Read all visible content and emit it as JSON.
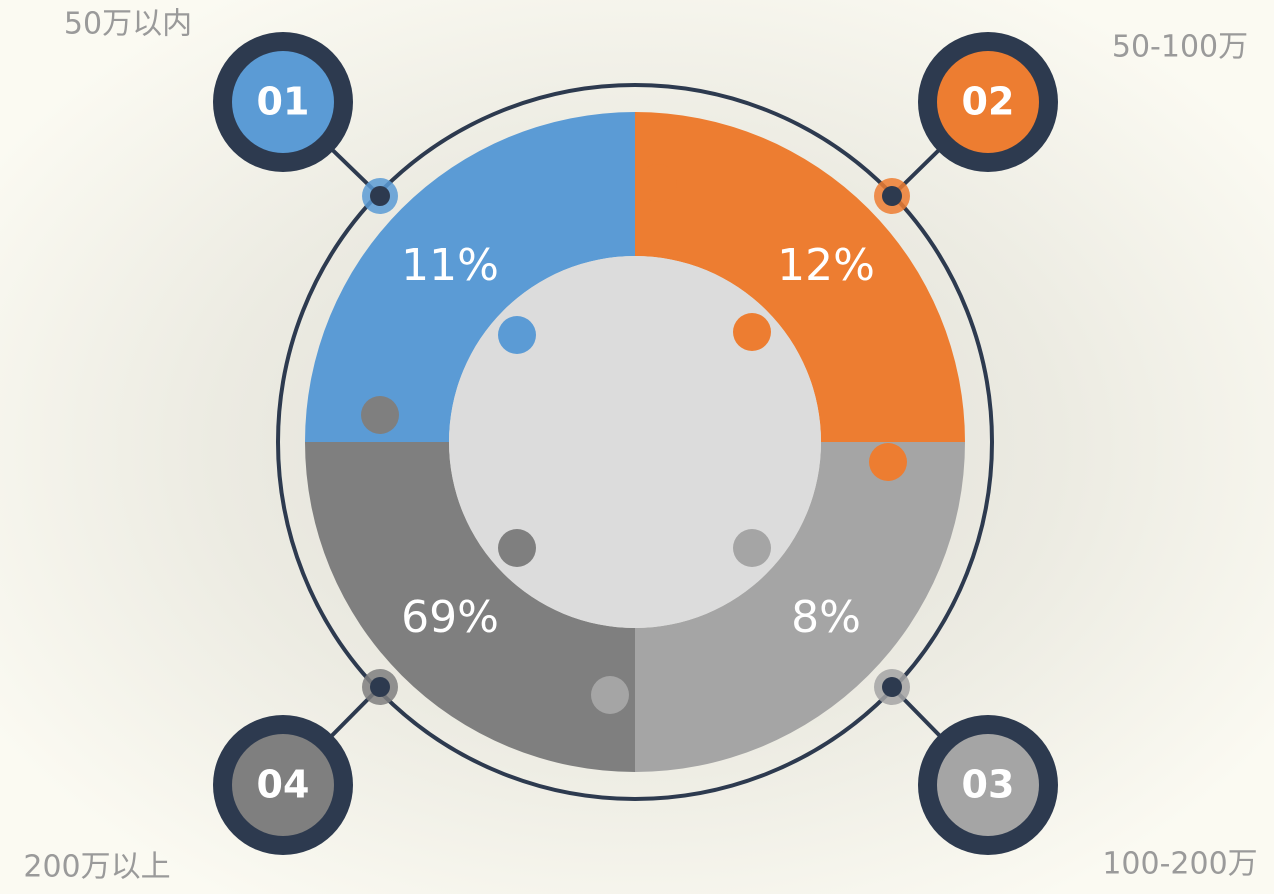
{
  "items": [
    {
      "badge": "01",
      "label": "50万以内",
      "percent": "11%"
    },
    {
      "badge": "02",
      "label": "50-100万",
      "percent": "12%"
    },
    {
      "badge": "03",
      "label": "100-200万",
      "percent": "8%"
    },
    {
      "badge": "04",
      "label": "200万以上",
      "percent": "69%"
    }
  ]
}
